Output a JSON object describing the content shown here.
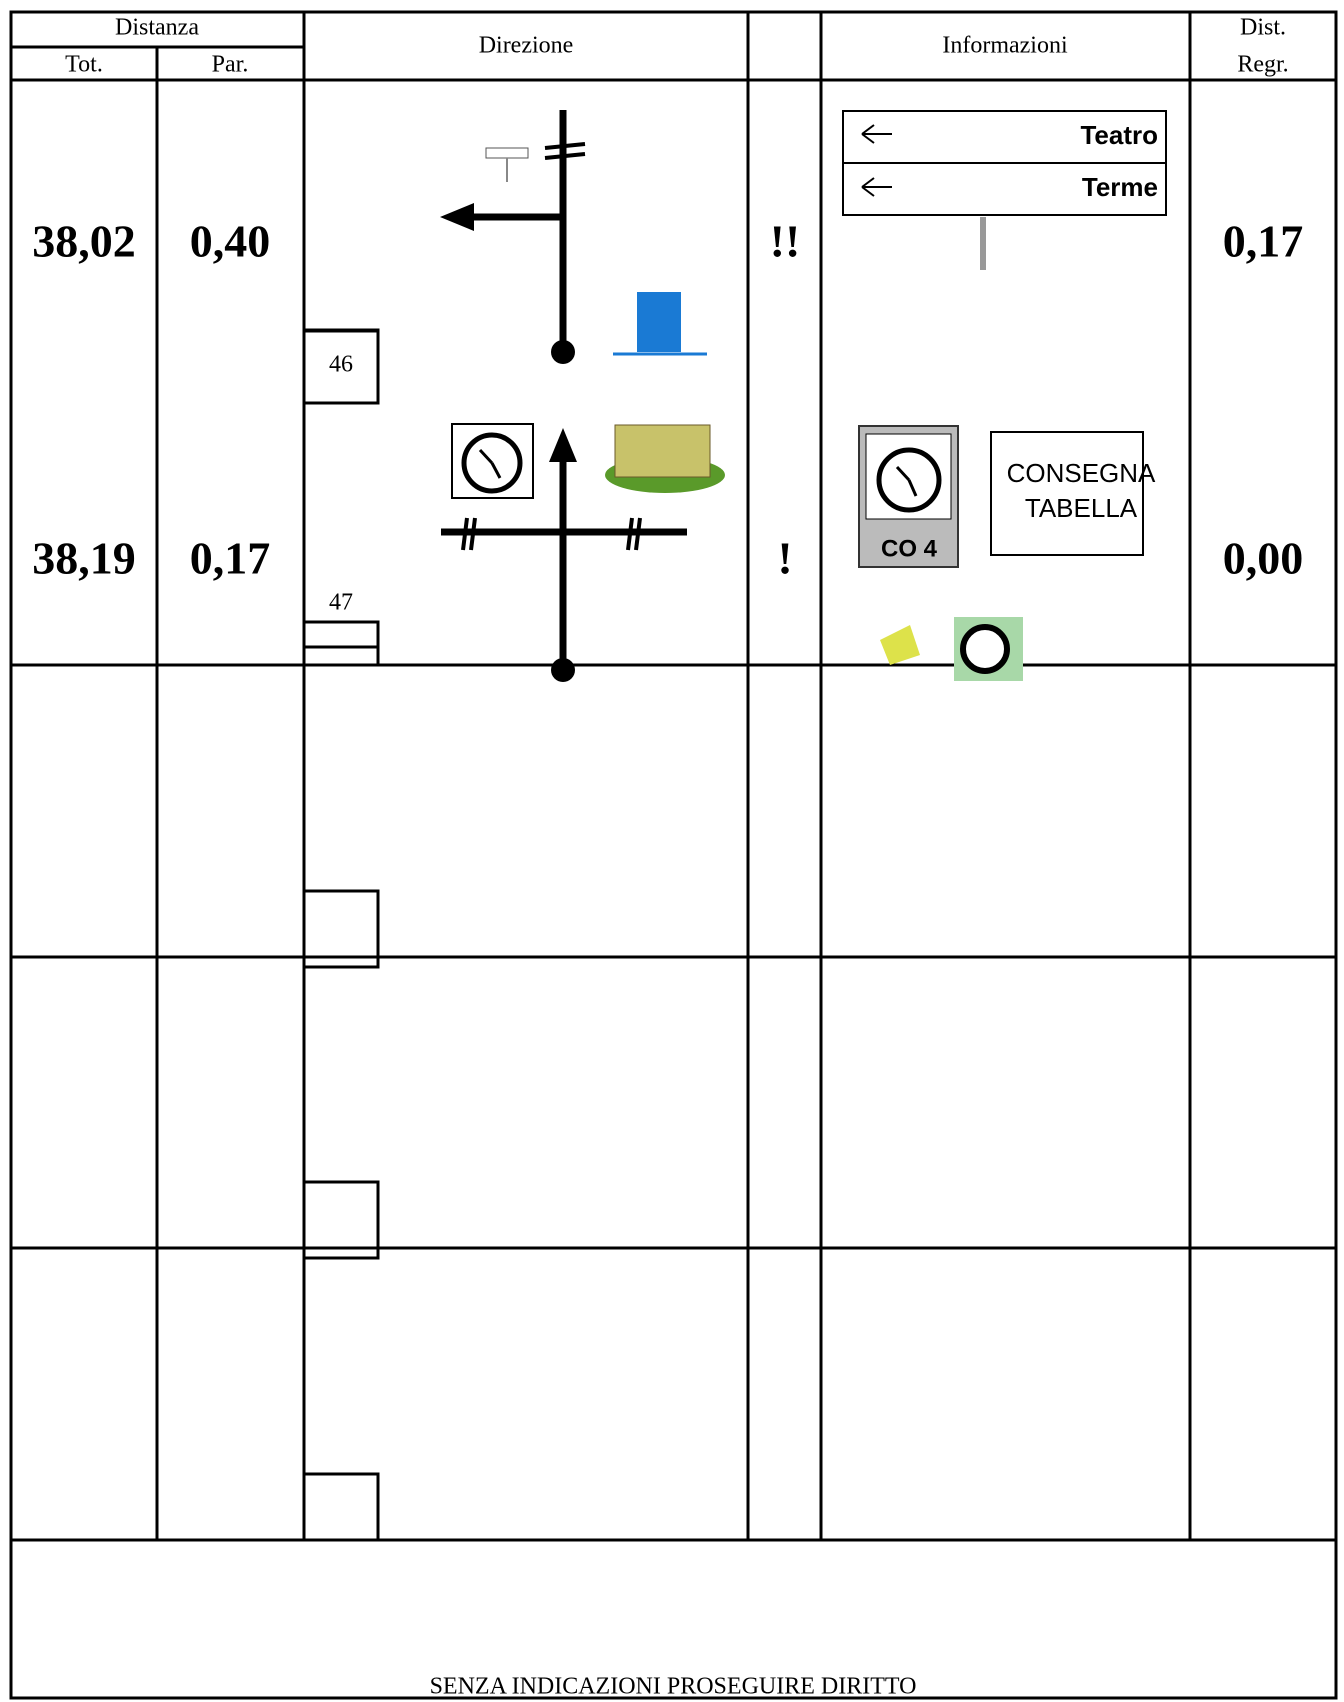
{
  "header": {
    "distanza": "Distanza",
    "tot": "Tot.",
    "par": "Par.",
    "direzione": "Direzione",
    "informazioni": "Informazioni",
    "dist_regr": [
      "Dist.",
      "Regr."
    ]
  },
  "rows": [
    {
      "tot": "38,02",
      "par": "0,40",
      "box": "46",
      "note": "!!",
      "dist": "0,17",
      "signs": [
        "Teatro",
        "Terme"
      ]
    },
    {
      "tot": "38,19",
      "par": "0,17",
      "box": "47",
      "note": "!",
      "dist": "0,00",
      "co": "CO 4",
      "info": [
        "CONSEGNA",
        "TABELLA"
      ]
    }
  ],
  "footer": "SENZA INDICAZIONI PROSEGUIRE DIRITTO"
}
